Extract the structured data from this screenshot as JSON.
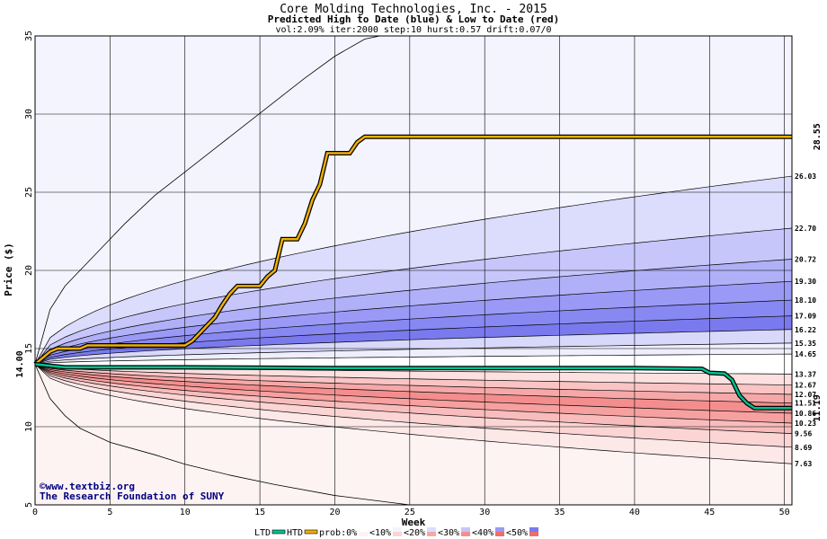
{
  "chart_data": {
    "type": "area",
    "title": "Core Molding Technologies, Inc. - 2015",
    "subtitle": "Predicted High to Date (blue) &  Low to Date (red)",
    "params": "vol:2.09% iter:2000 step:10 hurst:0.57 drift:0.07/0",
    "xlabel": "Week",
    "ylabel": "Price ($)",
    "xlim": [
      0,
      50.5
    ],
    "ylim": [
      5,
      35
    ],
    "x_ticks": [
      0,
      5,
      10,
      15,
      20,
      25,
      30,
      35,
      40,
      45,
      50
    ],
    "y_ticks": [
      5,
      10,
      15,
      20,
      25,
      30,
      35
    ],
    "grid": true,
    "start_price_label": "14.00",
    "start_price": 14.0,
    "htd_end_label": "28.55",
    "ltd_end_label": "11.19",
    "high_bands": [
      {
        "end": 35.0,
        "fill": "#f4f4fe"
      },
      {
        "end": 26.03,
        "fill": "#dcdcfc",
        "label": "26.03"
      },
      {
        "end": 22.7,
        "fill": "#c6c6fa",
        "label": "22.70"
      },
      {
        "end": 20.72,
        "fill": "#b0b0f8",
        "label": "20.72"
      },
      {
        "end": 19.3,
        "fill": "#9a9af6",
        "label": "19.30"
      },
      {
        "end": 18.1,
        "fill": "#8888f2",
        "label": "18.10"
      },
      {
        "end": 17.09,
        "fill": "#7a7aee",
        "label": "17.09"
      },
      {
        "end": 16.22,
        "fill": "#d8d8fb",
        "label": "16.22"
      },
      {
        "end": 15.35,
        "fill": "#eeeefd",
        "label": "15.35"
      },
      {
        "end": 14.65,
        "fill": "#ffffff",
        "label": "14.65"
      }
    ],
    "low_bands": [
      {
        "end": 13.37,
        "fill": "#ffffff",
        "label": "13.37"
      },
      {
        "end": 12.67,
        "fill": "#fde0e0",
        "label": "12.67"
      },
      {
        "end": 12.07,
        "fill": "#fac4c4",
        "label": "12.07"
      },
      {
        "end": 11.51,
        "fill": "#f6a8a8",
        "label": "11.51"
      },
      {
        "end": 10.86,
        "fill": "#f48e8e",
        "label": "10.86"
      },
      {
        "end": 10.23,
        "fill": "#f6a0a0",
        "label": "10.23"
      },
      {
        "end": 9.56,
        "fill": "#f9bcbc",
        "label": "9.56"
      },
      {
        "end": 8.69,
        "fill": "#fbd4d4",
        "label": "8.69"
      },
      {
        "end": 7.63,
        "fill": "#fde8e8",
        "label": "7.63"
      },
      {
        "end": 5.0,
        "fill": "#fdf3f3"
      }
    ],
    "series": [
      {
        "name": "HTD",
        "color": "#f0b000",
        "x": [
          0,
          1,
          1.5,
          3,
          3.5,
          10,
          10.5,
          11,
          11.5,
          12,
          12.5,
          13,
          13.5,
          15,
          15.5,
          16,
          16.5,
          17.5,
          18,
          18.5,
          19,
          19.5,
          20,
          21,
          21.5,
          22,
          23,
          30,
          40,
          50.5
        ],
        "y": [
          14.0,
          14.8,
          15.0,
          15.0,
          15.2,
          15.2,
          15.5,
          16.0,
          16.5,
          17.0,
          17.8,
          18.5,
          19.0,
          19.0,
          19.6,
          20.0,
          22.0,
          22.0,
          23.0,
          24.5,
          25.5,
          27.5,
          27.5,
          27.5,
          28.2,
          28.55,
          28.55,
          28.55,
          28.55,
          28.55
        ]
      },
      {
        "name": "LTD",
        "color": "#00c090",
        "x": [
          0,
          1,
          2,
          5,
          10,
          20,
          30,
          40,
          44.5,
          45,
          46,
          46.5,
          47,
          47.5,
          48,
          50.5
        ],
        "y": [
          14.0,
          13.9,
          13.8,
          13.8,
          13.8,
          13.75,
          13.75,
          13.75,
          13.7,
          13.45,
          13.4,
          13.0,
          12.0,
          11.5,
          11.19,
          11.19
        ]
      }
    ],
    "envelope": {
      "upper": {
        "x": [
          0,
          1,
          2,
          4,
          6,
          8,
          10,
          12,
          14,
          16,
          18,
          20,
          22,
          23
        ],
        "y": [
          14.0,
          17.5,
          19.0,
          21.0,
          23.0,
          24.8,
          26.3,
          27.8,
          29.3,
          30.8,
          32.3,
          33.7,
          34.8,
          35.0
        ]
      },
      "lower": {
        "x": [
          0,
          1,
          2,
          3,
          5,
          8,
          10,
          13,
          16,
          20,
          25
        ],
        "y": [
          14.0,
          11.8,
          10.7,
          9.9,
          9.0,
          8.2,
          7.6,
          6.9,
          6.3,
          5.6,
          5.0
        ]
      }
    },
    "legend": {
      "items": [
        "LTD",
        "HTD",
        "prob:0%",
        "<10%",
        "<20%",
        "<30%",
        "<40%",
        "<50%"
      ],
      "swatches": [
        "#00c090",
        "#f0b000",
        "#ffffff",
        "#f4f4fe",
        "#dcdcfc",
        "#c6c6fa",
        "#9a9af6",
        "#7a7aee"
      ],
      "swatches_red": [
        "#fdf3f3",
        "#fbd4d4",
        "#f6a8a8",
        "#f48e8e",
        "#f06c6c"
      ]
    },
    "credit": {
      "line1": "©www.textbiz.org",
      "line2": "The Research Foundation of SUNY"
    }
  }
}
